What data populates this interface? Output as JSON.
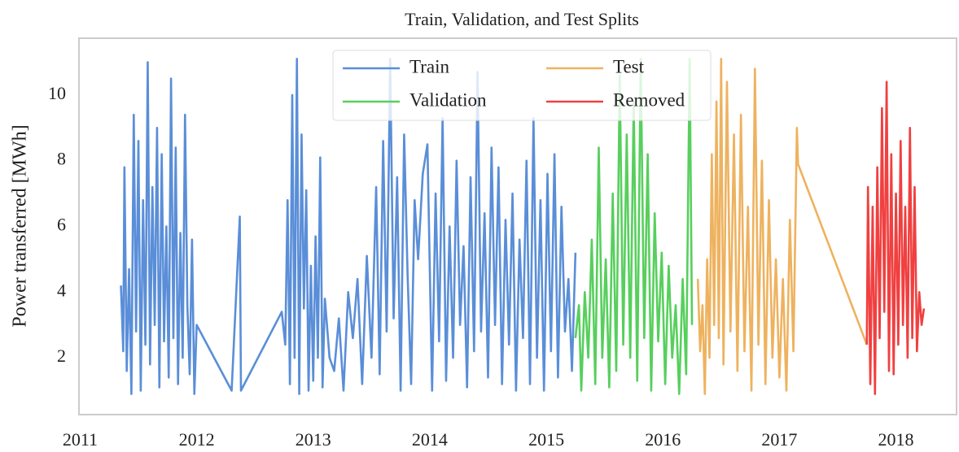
{
  "chart_data": {
    "type": "line",
    "title": "Train, Validation, and Test Splits",
    "y_label": "Power transferred [MWh]",
    "xlim": [
      2010.99,
      2018.52
    ],
    "xticks": [
      2011,
      2012,
      2013,
      2014,
      2015,
      2016,
      2017,
      2018
    ],
    "ylim": [
      0.27,
      11.73
    ],
    "yticks": [
      2,
      4,
      6,
      8,
      10
    ],
    "grid": false,
    "legend_loc": "upper center",
    "series": [
      {
        "name": "Train",
        "color": "#5a8ed8",
        "x": [
          2011.35,
          2011.37,
          2011.38,
          2011.4,
          2011.42,
          2011.44,
          2011.46,
          2011.48,
          2011.5,
          2011.52,
          2011.54,
          2011.56,
          2011.58,
          2011.6,
          2011.62,
          2011.64,
          2011.66,
          2011.68,
          2011.7,
          2011.72,
          2011.74,
          2011.76,
          2011.78,
          2011.8,
          2011.82,
          2011.84,
          2011.86,
          2011.88,
          2011.9,
          2011.92,
          2011.94,
          2011.96,
          2011.98,
          2012.0,
          2012.3,
          2012.37,
          2012.38,
          2012.73,
          2012.76,
          2012.78,
          2012.8,
          2012.82,
          2012.84,
          2012.86,
          2012.88,
          2012.9,
          2012.92,
          2012.94,
          2012.96,
          2012.98,
          2013.0,
          2013.02,
          2013.04,
          2013.06,
          2013.08,
          2013.1,
          2013.14,
          2013.18,
          2013.22,
          2013.26,
          2013.3,
          2013.34,
          2013.38,
          2013.42,
          2013.46,
          2013.5,
          2013.54,
          2013.57,
          2013.6,
          2013.63,
          2013.66,
          2013.69,
          2013.72,
          2013.75,
          2013.78,
          2013.81,
          2013.84,
          2013.87,
          2013.9,
          2013.94,
          2013.98,
          2014.02,
          2014.05,
          2014.08,
          2014.11,
          2014.14,
          2014.17,
          2014.2,
          2014.23,
          2014.26,
          2014.29,
          2014.32,
          2014.35,
          2014.38,
          2014.41,
          2014.44,
          2014.47,
          2014.5,
          2014.53,
          2014.56,
          2014.59,
          2014.62,
          2014.65,
          2014.68,
          2014.71,
          2014.74,
          2014.77,
          2014.8,
          2014.83,
          2014.86,
          2014.89,
          2014.92,
          2014.95,
          2014.98,
          2015.01,
          2015.04,
          2015.07,
          2015.1,
          2015.13,
          2015.16,
          2015.19,
          2015.22,
          2015.25
        ],
        "values": [
          4.2,
          2.2,
          7.8,
          1.6,
          4.7,
          0.9,
          9.4,
          2.8,
          8.6,
          1.0,
          6.8,
          2.4,
          11.0,
          1.8,
          7.2,
          3.0,
          9.0,
          1.1,
          8.2,
          2.5,
          6.0,
          1.4,
          10.5,
          2.6,
          8.4,
          1.2,
          5.8,
          2.0,
          9.4,
          3.6,
          1.5,
          5.6,
          0.9,
          3.0,
          1.0,
          6.3,
          1.0,
          3.4,
          2.4,
          6.8,
          1.2,
          10.0,
          2.0,
          11.1,
          0.9,
          8.8,
          3.5,
          7.1,
          1.0,
          4.8,
          1.3,
          5.7,
          2.0,
          8.1,
          1.1,
          3.8,
          2.0,
          1.6,
          3.2,
          1.0,
          4.0,
          2.6,
          4.4,
          1.2,
          5.1,
          2.0,
          7.2,
          1.5,
          8.6,
          2.8,
          11.1,
          3.2,
          7.5,
          1.0,
          8.8,
          4.5,
          1.2,
          6.8,
          5.0,
          7.6,
          8.5,
          1.0,
          7.0,
          2.5,
          9.3,
          1.3,
          6.0,
          2.0,
          8.0,
          3.0,
          5.4,
          1.1,
          7.5,
          2.2,
          10.7,
          2.8,
          6.4,
          1.4,
          8.4,
          3.0,
          7.8,
          1.2,
          6.2,
          2.4,
          7.0,
          1.0,
          5.6,
          2.6,
          8.0,
          1.2,
          9.3,
          2.0,
          6.8,
          1.0,
          7.6,
          2.2,
          8.2,
          1.4,
          6.6,
          2.8,
          4.4,
          1.6,
          5.2
        ]
      },
      {
        "name": "Validation",
        "color": "#57cf5d",
        "x": [
          2015.25,
          2015.28,
          2015.3,
          2015.33,
          2015.36,
          2015.39,
          2015.42,
          2015.45,
          2015.48,
          2015.51,
          2015.54,
          2015.57,
          2015.6,
          2015.63,
          2015.66,
          2015.69,
          2015.72,
          2015.75,
          2015.78,
          2015.81,
          2015.84,
          2015.87,
          2015.9,
          2015.93,
          2015.96,
          2015.99,
          2016.02,
          2016.05,
          2016.08,
          2016.11,
          2016.14,
          2016.17,
          2016.2,
          2016.23,
          2016.25
        ],
        "values": [
          2.6,
          3.6,
          1.0,
          4.0,
          2.0,
          5.6,
          1.2,
          8.4,
          2.0,
          5.0,
          1.1,
          7.0,
          1.6,
          10.6,
          2.4,
          8.8,
          2.0,
          9.8,
          1.3,
          11.1,
          2.6,
          8.2,
          1.0,
          6.4,
          2.5,
          5.2,
          1.2,
          4.8,
          2.0,
          3.6,
          0.9,
          4.4,
          1.5,
          11.1,
          3.0
        ]
      },
      {
        "name": "Test",
        "color": "#eeb25f",
        "x": [
          2016.3,
          2016.32,
          2016.34,
          2016.36,
          2016.38,
          2016.4,
          2016.42,
          2016.44,
          2016.46,
          2016.48,
          2016.5,
          2016.52,
          2016.55,
          2016.58,
          2016.61,
          2016.64,
          2016.67,
          2016.7,
          2016.73,
          2016.76,
          2016.79,
          2016.82,
          2016.85,
          2016.88,
          2016.91,
          2016.94,
          2016.97,
          2017.0,
          2017.03,
          2017.06,
          2017.09,
          2017.12,
          2017.15,
          2017.16,
          2017.75
        ],
        "values": [
          4.4,
          2.2,
          3.6,
          0.9,
          5.0,
          2.0,
          8.2,
          3.0,
          9.8,
          2.6,
          11.1,
          1.8,
          10.4,
          2.8,
          8.8,
          1.6,
          9.4,
          2.2,
          6.6,
          1.0,
          10.8,
          2.4,
          8.0,
          1.2,
          6.8,
          2.0,
          5.0,
          1.4,
          4.4,
          1.0,
          6.2,
          2.2,
          9.0,
          7.9,
          2.4
        ]
      },
      {
        "name": "Removed",
        "color": "#f04040",
        "x": [
          2017.75,
          2017.76,
          2017.78,
          2017.8,
          2017.82,
          2017.84,
          2017.86,
          2017.88,
          2017.9,
          2017.92,
          2017.94,
          2017.96,
          2017.98,
          2018.0,
          2018.02,
          2018.04,
          2018.06,
          2018.08,
          2018.1,
          2018.12,
          2018.14,
          2018.16,
          2018.18,
          2018.2,
          2018.22,
          2018.24
        ],
        "values": [
          2.4,
          7.2,
          1.2,
          6.6,
          0.9,
          7.8,
          2.6,
          9.6,
          3.4,
          10.4,
          1.6,
          8.2,
          1.5,
          7.0,
          2.4,
          8.6,
          3.0,
          6.6,
          2.0,
          9.0,
          2.6,
          7.2,
          2.2,
          4.0,
          3.0,
          3.5
        ]
      }
    ]
  }
}
